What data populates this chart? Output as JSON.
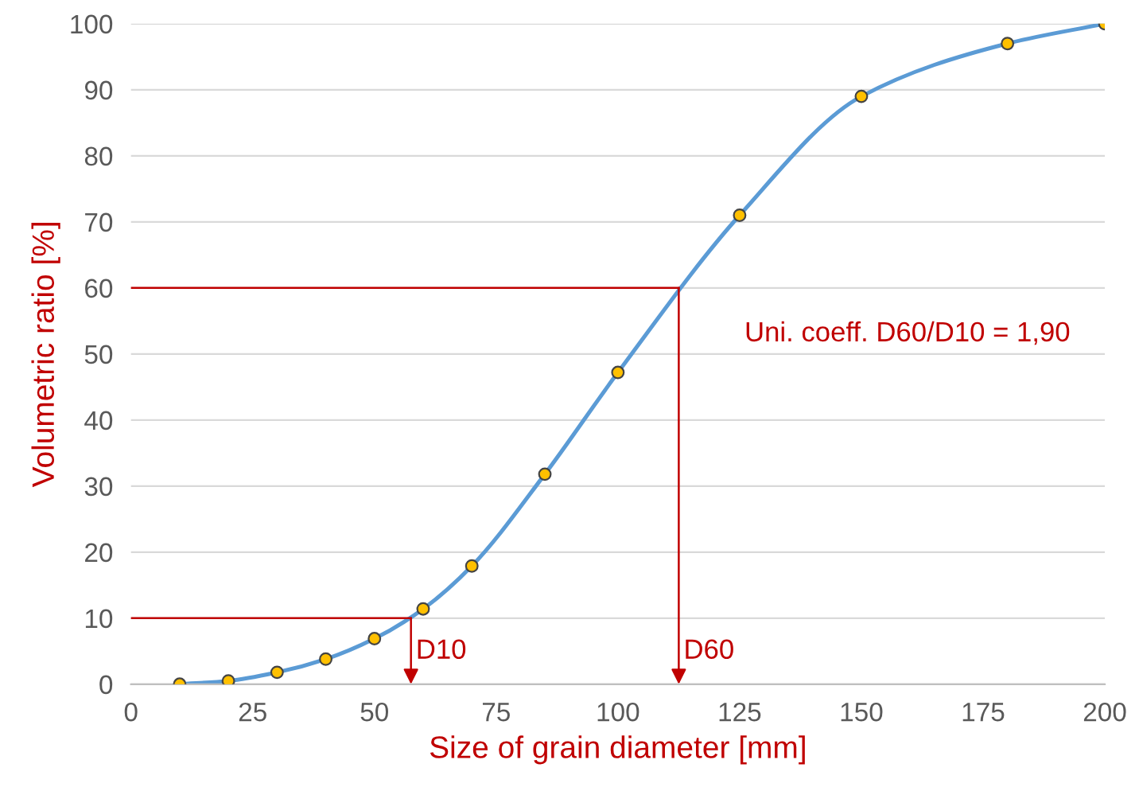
{
  "chart_data": {
    "type": "line",
    "xlabel": "Size of grain diameter [mm]",
    "ylabel": "Volumetric ratio [%]",
    "series": [
      {
        "color": "#5b9bd5",
        "marker": "none",
        "x": [
          10,
          20,
          30,
          40,
          50,
          60,
          70,
          85,
          100,
          125,
          150,
          180,
          200
        ],
        "values": [
          0,
          0.5,
          1.8,
          3.8,
          6.9,
          11.4,
          17.9,
          31.8,
          47.2,
          71,
          89,
          97,
          100
        ]
      },
      {
        "type": "scatter",
        "color": "#ffc000",
        "marker": "circle",
        "x": [
          10,
          20,
          30,
          40,
          50,
          60,
          70,
          85,
          100,
          125,
          150,
          180,
          200
        ],
        "values": [
          0,
          0.5,
          1.8,
          3.8,
          6.9,
          11.4,
          17.9,
          31.8,
          47.2,
          71,
          89,
          97,
          100
        ]
      },
      {
        "color": "#c00000",
        "marker": "none",
        "line_style": "solid",
        "x": [
          0,
          57.5,
          57.5
        ],
        "values": [
          10,
          10,
          0
        ]
      },
      {
        "color": "#c00000",
        "marker": "none",
        "line_style": "solid",
        "x": [
          0,
          112.5,
          112.5
        ],
        "values": [
          60,
          60,
          0
        ]
      }
    ],
    "annotations": [
      {
        "text": "D10",
        "x": 57.5,
        "y": 3
      },
      {
        "text": "D60",
        "x": 112.5,
        "y": 3
      },
      "Uni. coeff. D60/D10 = 1,90"
    ],
    "xlim": [
      0,
      200
    ],
    "xticks": [
      0,
      25,
      50,
      75,
      100,
      125,
      150,
      175,
      200
    ],
    "ylim": [
      0,
      100
    ],
    "yticks": [
      0,
      10,
      20,
      30,
      40,
      50,
      60,
      70,
      80,
      90,
      100
    ],
    "grid": "y"
  }
}
